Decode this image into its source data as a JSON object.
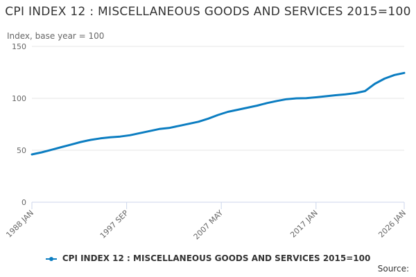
{
  "chart_data": {
    "type": "line",
    "title": "CPI INDEX 12 : MISCELLANEOUS GOODS AND SERVICES 2015=100",
    "ylabel": "Index, base year = 100",
    "xlabel": "",
    "ylim": [
      0,
      150
    ],
    "yticks": [
      "0",
      "50",
      "100",
      "150"
    ],
    "xticks": [
      {
        "label": "1988 JAN",
        "x": 1988.0
      },
      {
        "label": "1997 SEP",
        "x": 1997.67
      },
      {
        "label": "2007 MAY",
        "x": 2007.33
      },
      {
        "label": "2017 JAN",
        "x": 2017.0
      },
      {
        "label": "2026 JAN",
        "x": 2026.0
      }
    ],
    "xlim": [
      1988.0,
      2026.0
    ],
    "grid": true,
    "legend": "bottom",
    "series": [
      {
        "name": "CPI INDEX 12 : MISCELLANEOUS GOODS AND SERVICES 2015=100",
        "color": "#0b7dc1",
        "points": [
          [
            1988.0,
            46
          ],
          [
            1989.0,
            48
          ],
          [
            1990.0,
            50.5
          ],
          [
            1991.0,
            53
          ],
          [
            1992.0,
            55.5
          ],
          [
            1993.0,
            58
          ],
          [
            1994.0,
            60
          ],
          [
            1995.0,
            61.5
          ],
          [
            1996.0,
            62.5
          ],
          [
            1997.0,
            63.2
          ],
          [
            1998.0,
            64.5
          ],
          [
            1999.0,
            66.5
          ],
          [
            2000.0,
            68.5
          ],
          [
            2001.0,
            70.5
          ],
          [
            2002.0,
            71.5
          ],
          [
            2003.0,
            73.5
          ],
          [
            2004.0,
            75.5
          ],
          [
            2005.0,
            77.5
          ],
          [
            2006.0,
            80.5
          ],
          [
            2007.0,
            84
          ],
          [
            2008.0,
            87
          ],
          [
            2009.0,
            89
          ],
          [
            2010.0,
            91
          ],
          [
            2011.0,
            93
          ],
          [
            2012.0,
            95.5
          ],
          [
            2013.0,
            97.5
          ],
          [
            2014.0,
            99.2
          ],
          [
            2015.0,
            100
          ],
          [
            2016.0,
            100.2
          ],
          [
            2017.0,
            101
          ],
          [
            2018.0,
            102
          ],
          [
            2019.0,
            103
          ],
          [
            2020.0,
            103.8
          ],
          [
            2021.0,
            105
          ],
          [
            2022.0,
            107
          ],
          [
            2023.0,
            114
          ],
          [
            2024.0,
            119
          ],
          [
            2025.0,
            122.5
          ],
          [
            2026.0,
            124.5
          ]
        ]
      }
    ]
  },
  "source": "Source:"
}
